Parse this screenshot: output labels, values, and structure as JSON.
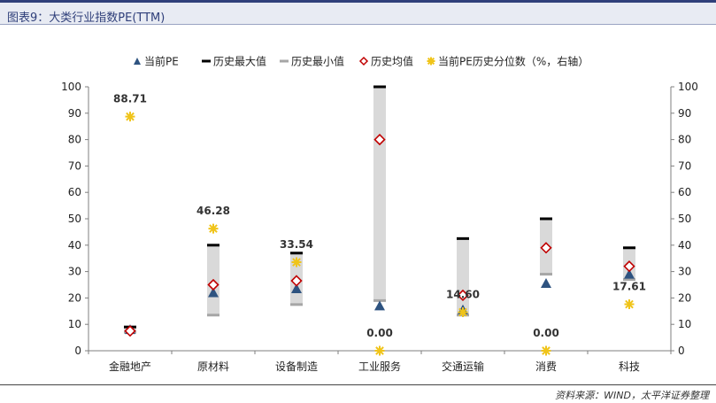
{
  "header": {
    "title": "图表9：大类行业指数PE(TTM)",
    "source": "资料来源：WIND，太平洋证券整理"
  },
  "colors": {
    "current_pe": "#2e5380",
    "hist_max": "#000000",
    "hist_min": "#a6a6a6",
    "hist_avg": "#c00000",
    "percentile": "#f0c419",
    "range_bar": "#d9d9d9",
    "title_bar": "#2f3f7a"
  },
  "chart_data": {
    "type": "scatter",
    "title": "",
    "legend_position": "top",
    "categories": [
      "金融地产",
      "原材料",
      "设备制造",
      "工业服务",
      "交通运输",
      "消费",
      "科技"
    ],
    "series": [
      {
        "name": "当前PE",
        "marker": "triangle",
        "axis": "left",
        "values": [
          8,
          22,
          23.5,
          17,
          15.5,
          25.5,
          29
        ]
      },
      {
        "name": "历史最大值",
        "marker": "dash",
        "axis": "left",
        "values": [
          9,
          40,
          37,
          100,
          42.5,
          50,
          39
        ]
      },
      {
        "name": "历史最小值",
        "marker": "dash",
        "axis": "left",
        "values": [
          7,
          13.5,
          17.5,
          19,
          13.5,
          29,
          27
        ]
      },
      {
        "name": "历史均值",
        "marker": "diamond",
        "axis": "left",
        "values": [
          7.5,
          25,
          26.5,
          80,
          21,
          39,
          32
        ]
      },
      {
        "name": "当前PE历史分位数（%，右轴）",
        "marker": "asterisk",
        "axis": "right",
        "values": [
          88.71,
          46.28,
          33.54,
          0.0,
          14.6,
          0.0,
          17.61
        ],
        "labels": [
          "88.71",
          "46.28",
          "33.54",
          "0.00",
          "14.60",
          "0.00",
          "17.61"
        ]
      }
    ],
    "yaxis_left": {
      "min": 0,
      "max": 100,
      "step": 10,
      "ticks": [
        "0",
        "10",
        "20",
        "30",
        "40",
        "50",
        "60",
        "70",
        "80",
        "90",
        "100"
      ]
    },
    "yaxis_right": {
      "min": 0,
      "max": 100,
      "step": 10,
      "ticks": [
        "0",
        "10",
        "20",
        "30",
        "40",
        "50",
        "60",
        "70",
        "80",
        "90",
        "100"
      ]
    },
    "grid": false
  }
}
